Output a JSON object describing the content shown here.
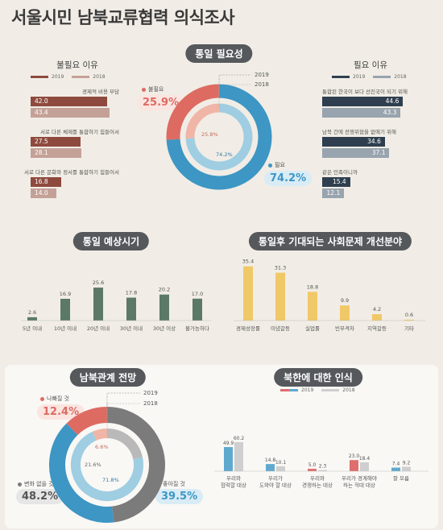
{
  "title": "서울시민 남북교류협력 의식조사",
  "colors": {
    "c2019_red": "#8e4a3e",
    "c2018_red": "#c4a197",
    "c2019_navy": "#2f3f4f",
    "c2018_navy": "#98a4ae",
    "donut_red": "#dd6b62",
    "donut_blue": "#3d96c4",
    "donut_pink": "#f0b5a6",
    "donut_lightblue": "#9fcde2",
    "green": "#5b7966",
    "yellow": "#f1c867",
    "gray": "#7b7b7b",
    "percep_red": "#df6e6d",
    "percep_blue": "#5fa9cf",
    "percep_gray": "#cfcfcf"
  },
  "legend_years": [
    "2019",
    "2018"
  ],
  "section1": {
    "pill": "통일 필요성",
    "year2019": "2019",
    "year2018": "2018",
    "unneeded_label": "불필요",
    "unneeded_value": "25.9%",
    "needed_label": "필요",
    "needed_value": "74.2%",
    "inner_unneeded": "25.8%",
    "inner_needed": "74.2%"
  },
  "left_reasons": {
    "heading": "불필요 이유",
    "items": [
      {
        "label": "경제적 비용 부담",
        "v2019": 42.0,
        "v2018": 43.4,
        "t2019": "42.0",
        "t2018": "43.4"
      },
      {
        "label": "서로 다른 체제를 통합하기 힘들어서",
        "v2019": 27.5,
        "v2018": 28.1,
        "t2019": "27.5",
        "t2018": "28.1"
      },
      {
        "label": "서로 다른 문화와 정서를 통합하기 힘들어서",
        "v2019": 16.8,
        "v2018": 14.0,
        "t2019": "16.8",
        "t2018": "14.0"
      }
    ]
  },
  "right_reasons": {
    "heading": "필요 이유",
    "items": [
      {
        "label": "통합된 한국이 보다 선진국이 되기 위해",
        "v2019": 44.6,
        "v2018": 43.3,
        "t2019": "44.6",
        "t2018": "43.3"
      },
      {
        "label": "남북 간에 전쟁위협을 없애기 위해",
        "v2019": 34.6,
        "v2018": 37.1,
        "t2019": "34.6",
        "t2018": "37.1"
      },
      {
        "label": "같은 민족이니까",
        "v2019": 15.4,
        "v2018": 12.1,
        "t2019": "15.4",
        "t2018": "12.1"
      }
    ]
  },
  "section2": {
    "pill": "통일 예상시기",
    "categories": [
      "5년 이내",
      "10년 이내",
      "20년 이내",
      "30년 이내",
      "30년 이상",
      "불가능하다"
    ],
    "values": [
      2.6,
      16.9,
      25.6,
      17.8,
      20.2,
      17.0
    ],
    "labels": [
      "2.6",
      "16.9",
      "25.6",
      "17.8",
      "20.2",
      "17.0"
    ]
  },
  "section3": {
    "pill": "통일후 기대되는 사회문제 개선분야",
    "categories": [
      "경제성장률",
      "이념갈등",
      "실업률",
      "빈부격차",
      "지역갈등",
      "기타"
    ],
    "values": [
      35.4,
      31.3,
      18.8,
      9.9,
      4.2,
      0.6
    ],
    "labels": [
      "35.4",
      "31.3",
      "18.8",
      "9.9",
      "4.2",
      "0.6"
    ]
  },
  "section4": {
    "pill": "남북관계 전망",
    "year2019": "2019",
    "year2018": "2018",
    "worse_label": "나빠질 것",
    "worse_value": "12.4%",
    "better_label": "좋아질 것",
    "better_value": "39.5%",
    "same_label": "변화 없을 것",
    "same_value": "48.2%",
    "inner_worse": "6.6%",
    "inner_same": "21.6%",
    "inner_better": "71.8%"
  },
  "section5": {
    "pill": "북한에 대한 인식",
    "categories": [
      "우리와\n협력할 대상",
      "우리가\n도와야 할 대상",
      "우리와\n경쟁하는 대상",
      "우리가 경계해야\n하는 적대 대상",
      "잘 모름"
    ],
    "v2019": [
      49.9,
      14.8,
      5.0,
      23.0,
      7.4
    ],
    "v2018": [
      60.2,
      10.1,
      2.3,
      18.4,
      9.2
    ],
    "t2019": [
      "49.9",
      "14.8",
      "5.0",
      "23.0",
      "7.4"
    ],
    "t2018": [
      "60.2",
      "10.1",
      "2.3",
      "18.4",
      "9.2"
    ]
  },
  "chart_data": [
    {
      "type": "pie",
      "title": "통일 필요성",
      "series": [
        {
          "name": "2019",
          "categories": [
            "불필요",
            "필요"
          ],
          "values": [
            25.9,
            74.2
          ]
        },
        {
          "name": "2018",
          "categories": [
            "불필요",
            "필요"
          ],
          "values": [
            25.8,
            74.2
          ]
        }
      ]
    },
    {
      "type": "bar",
      "title": "불필요 이유",
      "categories": [
        "경제적 비용 부담",
        "서로 다른 체제를 통합하기 힘들어서",
        "서로 다른 문화와 정서를 통합하기 힘들어서"
      ],
      "series": [
        {
          "name": "2019",
          "values": [
            42.0,
            27.5,
            16.8
          ]
        },
        {
          "name": "2018",
          "values": [
            43.4,
            28.1,
            14.0
          ]
        }
      ]
    },
    {
      "type": "bar",
      "title": "필요 이유",
      "categories": [
        "통합된 한국이 보다 선진국이 되기 위해",
        "남북 간에 전쟁위협을 없애기 위해",
        "같은 민족이니까"
      ],
      "series": [
        {
          "name": "2019",
          "values": [
            44.6,
            34.6,
            15.4
          ]
        },
        {
          "name": "2018",
          "values": [
            43.3,
            37.1,
            12.1
          ]
        }
      ]
    },
    {
      "type": "bar",
      "title": "통일 예상시기",
      "categories": [
        "5년 이내",
        "10년 이내",
        "20년 이내",
        "30년 이내",
        "30년 이상",
        "불가능하다"
      ],
      "values": [
        2.6,
        16.9,
        25.6,
        17.8,
        20.2,
        17.0
      ]
    },
    {
      "type": "bar",
      "title": "통일후 기대되는 사회문제 개선분야",
      "categories": [
        "경제성장률",
        "이념갈등",
        "실업률",
        "빈부격차",
        "지역갈등",
        "기타"
      ],
      "values": [
        35.4,
        31.3,
        18.8,
        9.9,
        4.2,
        0.6
      ]
    },
    {
      "type": "pie",
      "title": "남북관계 전망",
      "series": [
        {
          "name": "2019",
          "categories": [
            "나빠질 것",
            "변화 없을 것",
            "좋아질 것"
          ],
          "values": [
            12.4,
            48.2,
            39.5
          ]
        },
        {
          "name": "2018",
          "categories": [
            "나빠질 것",
            "변화 없을 것",
            "좋아질 것"
          ],
          "values": [
            6.6,
            21.6,
            71.8
          ]
        }
      ]
    },
    {
      "type": "bar",
      "title": "북한에 대한 인식",
      "categories": [
        "우리와 협력할 대상",
        "우리가 도와야 할 대상",
        "우리와 경쟁하는 대상",
        "우리가 경계해야 하는 적대 대상",
        "잘 모름"
      ],
      "series": [
        {
          "name": "2019",
          "values": [
            49.9,
            14.8,
            5.0,
            23.0,
            7.4
          ]
        },
        {
          "name": "2018",
          "values": [
            60.2,
            10.1,
            2.3,
            18.4,
            9.2
          ]
        }
      ]
    }
  ]
}
